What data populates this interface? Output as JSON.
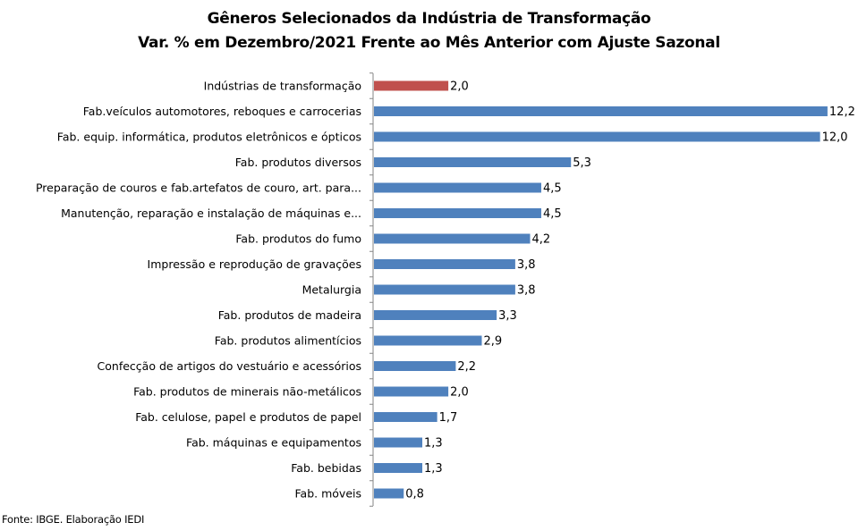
{
  "chart_data": {
    "type": "bar",
    "orientation": "horizontal",
    "title": "Gêneros Selecionados da Indústria de Transformação",
    "subtitle": "Var. % em Dezembro/2021 Frente ao Mês Anterior com Ajuste Sazonal",
    "categories": [
      "Indústrias de transformação",
      "Fab.veículos automotores, reboques e carrocerias",
      "Fab. equip. informática, produtos eletrônicos e ópticos",
      "Fab. produtos diversos",
      "Preparação de couros e fab.artefatos de couro, art. para...",
      "Manutenção, reparação e instalação de máquinas e...",
      "Fab. produtos do fumo",
      "Impressão e reprodução de gravações",
      "Metalurgia",
      "Fab. produtos de madeira",
      "Fab. produtos alimentícios",
      "Confecção de artigos do vestuário e acessórios",
      "Fab. produtos de minerais não-metálicos",
      "Fab. celulose, papel e produtos de papel",
      "Fab. máquinas e equipamentos",
      "Fab. bebidas",
      "Fab. móveis"
    ],
    "values": [
      2.0,
      12.2,
      12.0,
      5.3,
      4.5,
      4.5,
      4.2,
      3.8,
      3.8,
      3.3,
      2.9,
      2.2,
      2.0,
      1.7,
      1.3,
      1.3,
      0.8
    ],
    "value_labels": [
      "2,0",
      "12,2",
      "12,0",
      "5,3",
      "4,5",
      "4,5",
      "4,2",
      "3,8",
      "3,8",
      "3,3",
      "2,9",
      "2,2",
      "2,0",
      "1,7",
      "1,3",
      "1,3",
      "0,8"
    ],
    "highlight_index": 0,
    "colors": {
      "highlight": "#c0504d",
      "bar": "#4f81bd",
      "axis": "#868686"
    },
    "xlim": [
      0,
      12.2
    ],
    "grid": false,
    "legend": "none"
  },
  "source": "Fonte: IBGE. Elaboração IEDI"
}
